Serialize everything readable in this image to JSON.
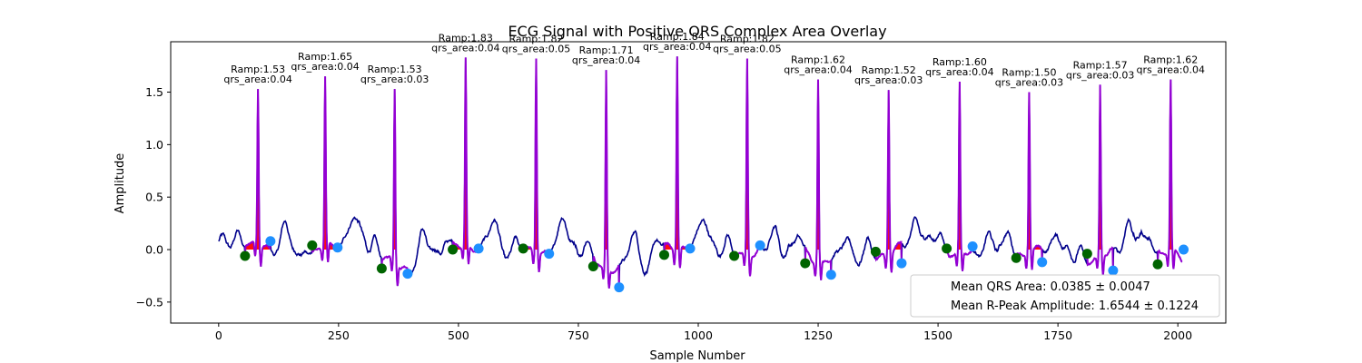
{
  "chart_data": {
    "type": "line",
    "title": "ECG Signal with Positive QRS Complex Area Overlay",
    "xlabel": "Sample Number",
    "ylabel": "Amplitude",
    "xlim": [
      -100,
      2100
    ],
    "ylim": [
      -0.7,
      1.98
    ],
    "x_ticks": [
      0,
      250,
      500,
      750,
      1000,
      1250,
      1500,
      1750,
      2000
    ],
    "x_tick_labels": [
      "0",
      "250",
      "500",
      "750",
      "1000",
      "1250",
      "1500",
      "1750",
      "2000"
    ],
    "y_ticks": [
      -0.5,
      0.0,
      0.5,
      1.0,
      1.5
    ],
    "y_tick_labels": [
      "−0.5",
      "0.0",
      "0.5",
      "1.0",
      "1.5"
    ],
    "grid": false,
    "colors": {
      "signal": "#00008b",
      "qrs_segment": "#9400d3",
      "qrs_fill": "#ff0000",
      "qrs_onset_marker": "#006400",
      "qrs_offset_marker": "#1e90ff"
    },
    "beats": [
      {
        "r_x": 82,
        "r_amp": 1.53,
        "onset_x": 55,
        "onset_y": -0.06,
        "offset_x": 108,
        "offset_y": 0.08,
        "ramp_label": "Ramp:1.53",
        "area_label": "qrs_area:0.04"
      },
      {
        "r_x": 222,
        "r_amp": 1.65,
        "onset_x": 195,
        "onset_y": 0.04,
        "offset_x": 248,
        "offset_y": 0.02,
        "ramp_label": "Ramp:1.65",
        "area_label": "qrs_area:0.04"
      },
      {
        "r_x": 367,
        "r_amp": 1.53,
        "onset_x": 340,
        "onset_y": -0.18,
        "offset_x": 394,
        "offset_y": -0.23,
        "ramp_label": "Ramp:1.53",
        "area_label": "qrs_area:0.03"
      },
      {
        "r_x": 515,
        "r_amp": 1.83,
        "onset_x": 488,
        "onset_y": -0.0,
        "offset_x": 542,
        "offset_y": 0.01,
        "ramp_label": "Ramp:1.83",
        "area_label": "qrs_area:0.04"
      },
      {
        "r_x": 662,
        "r_amp": 1.82,
        "onset_x": 635,
        "onset_y": 0.01,
        "offset_x": 689,
        "offset_y": -0.04,
        "ramp_label": "Ramp:1.82",
        "area_label": "qrs_area:0.05"
      },
      {
        "r_x": 808,
        "r_amp": 1.71,
        "onset_x": 781,
        "onset_y": -0.16,
        "offset_x": 835,
        "offset_y": -0.36,
        "ramp_label": "Ramp:1.71",
        "area_label": "qrs_area:0.04"
      },
      {
        "r_x": 956,
        "r_amp": 1.84,
        "onset_x": 929,
        "onset_y": -0.05,
        "offset_x": 983,
        "offset_y": 0.01,
        "ramp_label": "Ramp:1.84",
        "area_label": "qrs_area:0.04"
      },
      {
        "r_x": 1102,
        "r_amp": 1.82,
        "onset_x": 1075,
        "onset_y": -0.06,
        "offset_x": 1129,
        "offset_y": 0.04,
        "ramp_label": "Ramp:1.82",
        "area_label": "qrs_area:0.05"
      },
      {
        "r_x": 1250,
        "r_amp": 1.62,
        "onset_x": 1223,
        "onset_y": -0.13,
        "offset_x": 1277,
        "offset_y": -0.24,
        "ramp_label": "Ramp:1.62",
        "area_label": "qrs_area:0.04"
      },
      {
        "r_x": 1397,
        "r_amp": 1.52,
        "onset_x": 1370,
        "onset_y": -0.02,
        "offset_x": 1424,
        "offset_y": -0.13,
        "ramp_label": "Ramp:1.52",
        "area_label": "qrs_area:0.03"
      },
      {
        "r_x": 1545,
        "r_amp": 1.6,
        "onset_x": 1518,
        "onset_y": 0.01,
        "offset_x": 1572,
        "offset_y": 0.03,
        "ramp_label": "Ramp:1.60",
        "area_label": "qrs_area:0.04"
      },
      {
        "r_x": 1690,
        "r_amp": 1.5,
        "onset_x": 1663,
        "onset_y": -0.08,
        "offset_x": 1717,
        "offset_y": -0.12,
        "ramp_label": "Ramp:1.50",
        "area_label": "qrs_area:0.03"
      },
      {
        "r_x": 1838,
        "r_amp": 1.57,
        "onset_x": 1811,
        "onset_y": -0.04,
        "offset_x": 1865,
        "offset_y": -0.2,
        "ramp_label": "Ramp:1.57",
        "area_label": "qrs_area:0.03"
      },
      {
        "r_x": 1985,
        "r_amp": 1.62,
        "onset_x": 1958,
        "onset_y": -0.14,
        "offset_x": 2012,
        "offset_y": 0.0,
        "ramp_label": "Ramp:1.62",
        "area_label": "qrs_area:0.04"
      }
    ],
    "legend": {
      "placement": "lower-right",
      "entries": [
        "Mean QRS Area: 0.0385 ± 0.0047",
        "Mean R-Peak Amplitude: 1.6544 ± 0.1224"
      ]
    }
  }
}
